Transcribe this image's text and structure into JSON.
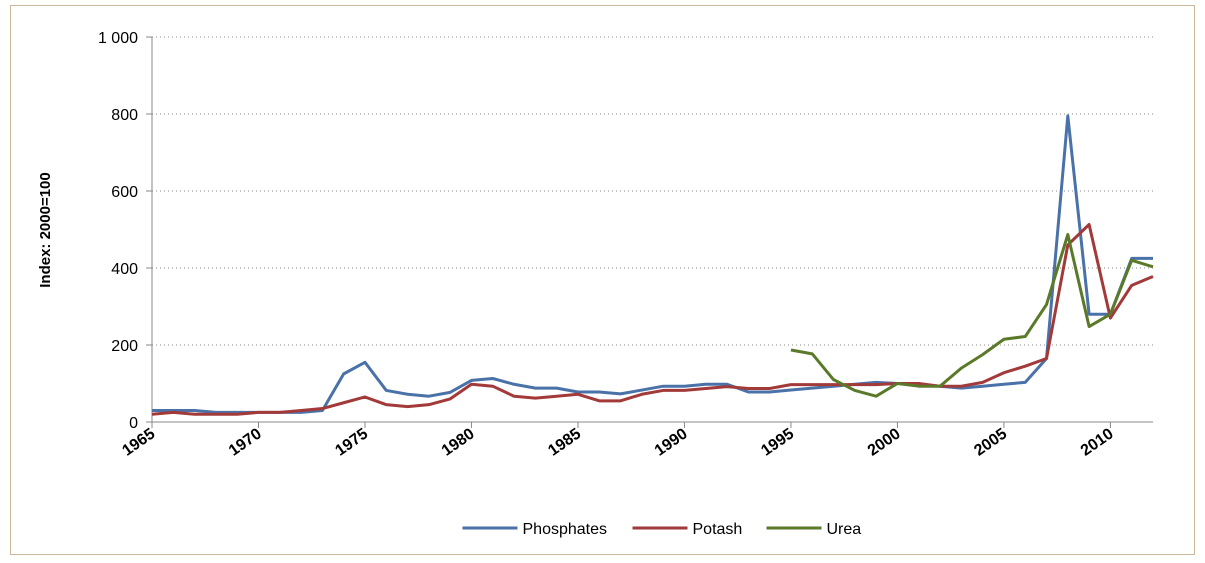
{
  "chart_data": {
    "type": "line",
    "y_label": "Index: 2000=100",
    "x": [
      1965,
      1966,
      1967,
      1968,
      1969,
      1970,
      1971,
      1972,
      1973,
      1974,
      1975,
      1976,
      1977,
      1978,
      1979,
      1980,
      1981,
      1982,
      1983,
      1984,
      1985,
      1986,
      1987,
      1988,
      1989,
      1990,
      1991,
      1992,
      1993,
      1994,
      1995,
      1996,
      1997,
      1998,
      1999,
      2000,
      2001,
      2002,
      2003,
      2004,
      2005,
      2006,
      2007,
      2008,
      2009,
      2010,
      2011,
      2012
    ],
    "series": [
      {
        "name": "Phosphates",
        "color": "#4a72a8",
        "values": [
          30,
          30,
          30,
          25,
          25,
          25,
          25,
          25,
          30,
          125,
          155,
          82,
          72,
          67,
          77,
          108,
          113,
          98,
          88,
          88,
          78,
          78,
          73,
          83,
          93,
          93,
          98,
          98,
          78,
          78,
          83,
          88,
          93,
          98,
          103,
          100,
          98,
          93,
          88,
          93,
          98,
          103,
          165,
          795,
          280,
          280,
          425,
          425
        ]
      },
      {
        "name": "Potash",
        "color": "#a33a3a",
        "values": [
          20,
          25,
          20,
          20,
          20,
          25,
          25,
          30,
          35,
          50,
          65,
          45,
          40,
          45,
          60,
          98,
          93,
          67,
          62,
          67,
          72,
          55,
          55,
          72,
          82,
          82,
          87,
          92,
          87,
          87,
          97,
          97,
          97,
          97,
          97,
          100,
          100,
          93,
          93,
          103,
          128,
          145,
          165,
          460,
          513,
          270,
          355,
          378
        ]
      },
      {
        "name": "Urea",
        "color": "#5a7a2a",
        "values": [
          null,
          null,
          null,
          null,
          null,
          null,
          null,
          null,
          null,
          null,
          null,
          null,
          null,
          null,
          null,
          null,
          null,
          null,
          null,
          null,
          null,
          null,
          null,
          null,
          null,
          null,
          null,
          null,
          null,
          null,
          187,
          177,
          110,
          82,
          67,
          100,
          93,
          93,
          140,
          175,
          215,
          222,
          305,
          487,
          248,
          280,
          420,
          403
        ]
      }
    ],
    "xlim": [
      1965,
      2012
    ],
    "xticks": [
      1965,
      1970,
      1975,
      1980,
      1985,
      1990,
      1995,
      2000,
      2005,
      2010
    ],
    "ylim": [
      0,
      1000
    ],
    "yticks": [
      0,
      200,
      400,
      600,
      {
        "value": 1000,
        "label": "1 000"
      },
      800
    ],
    "grid": true,
    "legend": "bottom"
  }
}
